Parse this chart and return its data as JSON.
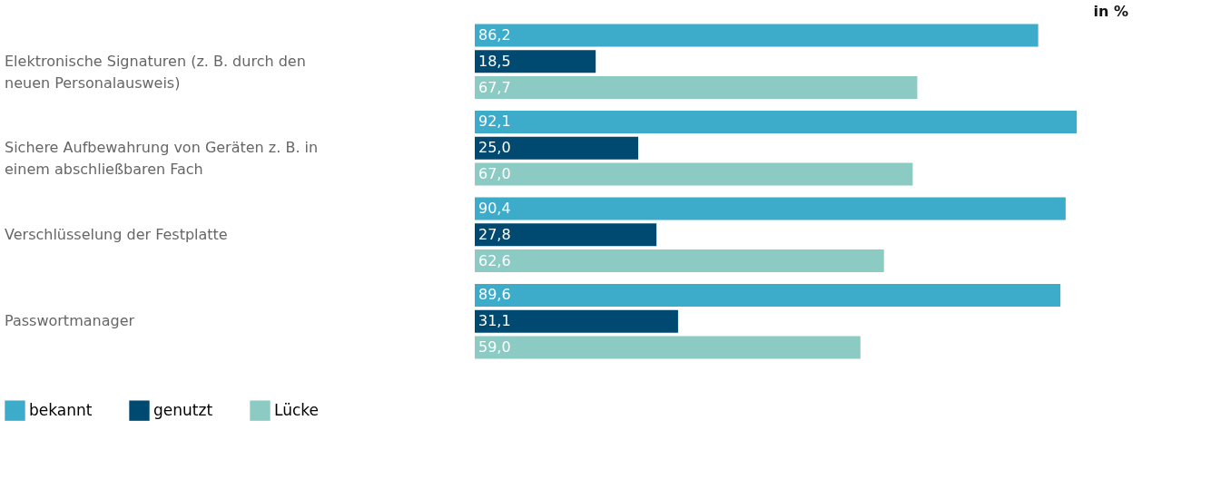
{
  "chart_data": {
    "type": "bar",
    "orientation": "horizontal",
    "categories": [
      "Elektronische Signaturen (z. B. durch den neuen Personalausweis)",
      "Sichere Aufbewahrung von Geräten z. B. in einem abschließbaren Fach",
      "Verschlüsselung der Festplatte",
      "Passwortmanager"
    ],
    "series": [
      {
        "name": "bekannt",
        "color": "#3dacca",
        "values": [
          86.2,
          92.1,
          90.4,
          89.6
        ],
        "value_labels": [
          "86,2",
          "92,1",
          "90,4",
          "89,6"
        ]
      },
      {
        "name": "genutzt",
        "color": "#004a72",
        "values": [
          18.5,
          25.0,
          27.8,
          31.1
        ],
        "value_labels": [
          "18,5",
          "25,0",
          "27,8",
          "31,1"
        ]
      },
      {
        "name": "Lücke",
        "color": "#8bcbc4",
        "values": [
          67.7,
          67.0,
          62.6,
          59.0
        ],
        "value_labels": [
          "67,7",
          "67,0",
          "62,6",
          "59,0"
        ]
      }
    ],
    "xlim": [
      0,
      100
    ],
    "annotations": [
      "in %"
    ],
    "legend": "bottom left"
  }
}
